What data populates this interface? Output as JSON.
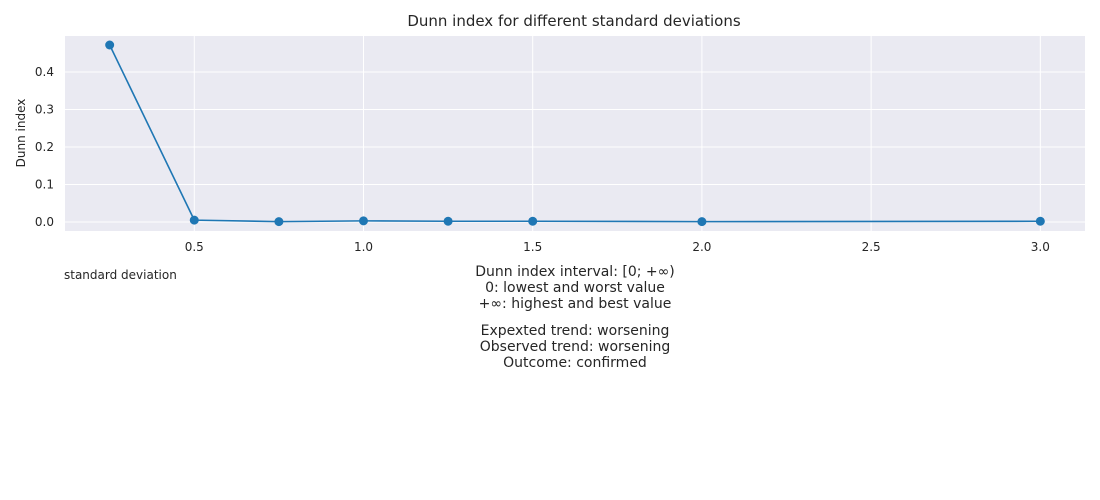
{
  "chart_data": {
    "type": "line",
    "title": "Dunn index for different standard deviations",
    "xlabel": "standard deviation",
    "ylabel": "Dunn index",
    "x": [
      0.25,
      0.5,
      0.75,
      1.0,
      1.25,
      1.5,
      2.0,
      3.0
    ],
    "series": [
      {
        "values": [
          0.472,
          0.005,
          0.001,
          0.003,
          0.002,
          0.002,
          0.001,
          0.002
        ],
        "color": "#1f77b4"
      }
    ],
    "xlim": [
      0.118,
      3.132
    ],
    "ylim": [
      -0.024,
      0.496
    ],
    "xticks": [
      0.5,
      1.0,
      1.5,
      2.0,
      2.5,
      3.0
    ],
    "xtick_labels": [
      "0.5",
      "1.0",
      "1.5",
      "2.0",
      "2.5",
      "3.0"
    ],
    "yticks": [
      0.0,
      0.1,
      0.2,
      0.3,
      0.4
    ],
    "ytick_labels": [
      "0.0",
      "0.1",
      "0.2",
      "0.3",
      "0.4"
    ],
    "grid": true,
    "style": {
      "background": "#eaeaf2",
      "grid_color": "#ffffff"
    }
  },
  "notes": {
    "interval": [
      "Dunn index interval: [0; +∞)",
      "0: lowest and worst value",
      "+∞: highest and best value"
    ],
    "trend": [
      "Expexted trend: worsening",
      "Observed trend: worsening",
      "Outcome: confirmed"
    ]
  }
}
